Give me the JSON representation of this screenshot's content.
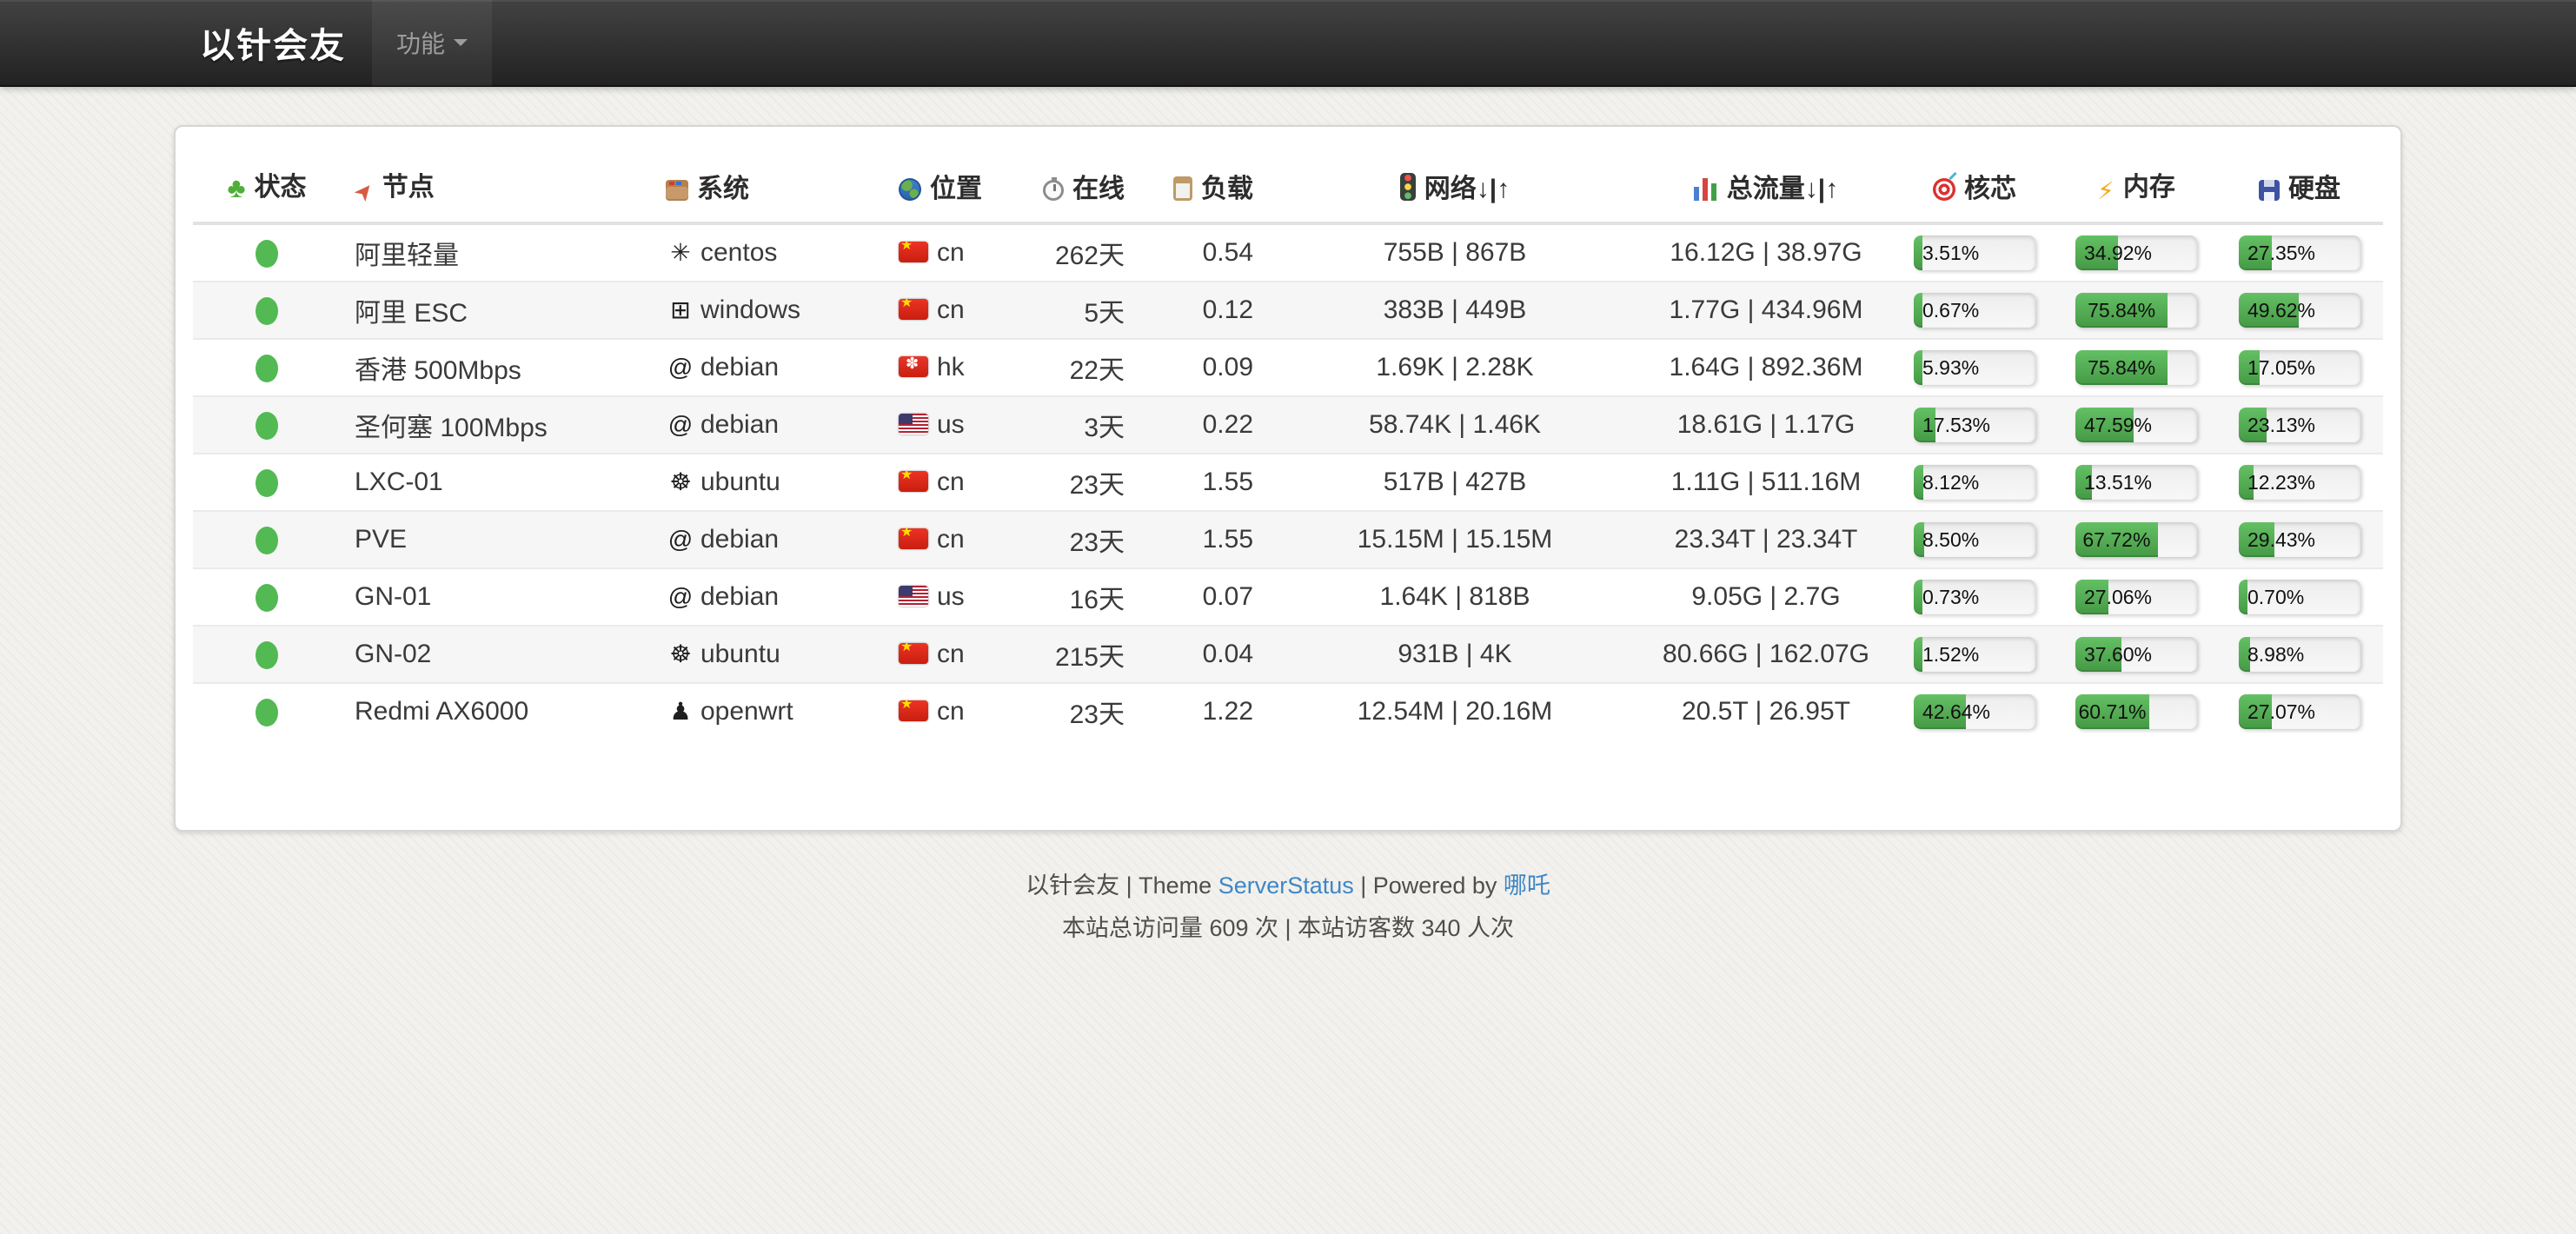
{
  "navbar": {
    "brand": "以针会友",
    "menu_label": "功能"
  },
  "colors": {
    "accent_green": "#53b953",
    "bar_green_top": "#64c064",
    "bar_green_bottom": "#459a45",
    "link_blue": "#3f86c6",
    "navbar_bg": "#222222",
    "stripe_gray": "#f6f6f6"
  },
  "table": {
    "headers": [
      {
        "id": "status",
        "icon": "clover",
        "label": "状态"
      },
      {
        "id": "node",
        "icon": "rocket",
        "label": "节点"
      },
      {
        "id": "system",
        "icon": "box",
        "label": "系统"
      },
      {
        "id": "location",
        "icon": "globe",
        "label": "位置"
      },
      {
        "id": "uptime",
        "icon": "stopwatch",
        "label": "在线"
      },
      {
        "id": "load",
        "icon": "clipboard",
        "label": "负载"
      },
      {
        "id": "network",
        "icon": "traffic-light",
        "label": "网络↓|↑"
      },
      {
        "id": "traffic",
        "icon": "bar-chart",
        "label": "总流量↓|↑"
      },
      {
        "id": "cpu",
        "icon": "target",
        "label": "核芯"
      },
      {
        "id": "memory",
        "icon": "lightning",
        "label": "内存"
      },
      {
        "id": "disk",
        "icon": "floppy",
        "label": "硬盘"
      }
    ],
    "os_icons": {
      "centos": "✳",
      "windows": "⊞",
      "debian": "@",
      "ubuntu": "☸",
      "openwrt": "♟"
    },
    "rows": [
      {
        "status": "online",
        "name": "阿里轻量",
        "os": "centos",
        "location": "cn",
        "uptime": "262天",
        "load": "0.54",
        "network": "755B | 867B",
        "traffic": "16.12G | 38.97G",
        "cpu": {
          "value": 3.51,
          "label": "3.51%"
        },
        "memory": {
          "value": 34.92,
          "label": "34.92%"
        },
        "disk": {
          "value": 27.35,
          "label": "27.35%"
        }
      },
      {
        "status": "online",
        "name": "阿里 ESC",
        "os": "windows",
        "location": "cn",
        "uptime": "5天",
        "load": "0.12",
        "network": "383B | 449B",
        "traffic": "1.77G | 434.96M",
        "cpu": {
          "value": 0.67,
          "label": "0.67%"
        },
        "memory": {
          "value": 75.84,
          "label": "75.84%"
        },
        "disk": {
          "value": 49.62,
          "label": "49.62%"
        }
      },
      {
        "status": "online",
        "name": "香港 500Mbps",
        "os": "debian",
        "location": "hk",
        "uptime": "22天",
        "load": "0.09",
        "network": "1.69K | 2.28K",
        "traffic": "1.64G | 892.36M",
        "cpu": {
          "value": 5.93,
          "label": "5.93%"
        },
        "memory": {
          "value": 75.84,
          "label": "75.84%"
        },
        "disk": {
          "value": 17.05,
          "label": "17.05%"
        }
      },
      {
        "status": "online",
        "name": "圣何塞 100Mbps",
        "os": "debian",
        "location": "us",
        "uptime": "3天",
        "load": "0.22",
        "network": "58.74K | 1.46K",
        "traffic": "18.61G | 1.17G",
        "cpu": {
          "value": 17.53,
          "label": "17.53%"
        },
        "memory": {
          "value": 47.59,
          "label": "47.59%"
        },
        "disk": {
          "value": 23.13,
          "label": "23.13%"
        }
      },
      {
        "status": "online",
        "name": "LXC-01",
        "os": "ubuntu",
        "location": "cn",
        "uptime": "23天",
        "load": "1.55",
        "network": "517B | 427B",
        "traffic": "1.11G | 511.16M",
        "cpu": {
          "value": 8.12,
          "label": "8.12%"
        },
        "memory": {
          "value": 13.51,
          "label": "13.51%"
        },
        "disk": {
          "value": 12.23,
          "label": "12.23%"
        }
      },
      {
        "status": "online",
        "name": "PVE",
        "os": "debian",
        "location": "cn",
        "uptime": "23天",
        "load": "1.55",
        "network": "15.15M | 15.15M",
        "traffic": "23.34T | 23.34T",
        "cpu": {
          "value": 8.5,
          "label": "8.50%"
        },
        "memory": {
          "value": 67.72,
          "label": "67.72%"
        },
        "disk": {
          "value": 29.43,
          "label": "29.43%"
        }
      },
      {
        "status": "online",
        "name": "GN-01",
        "os": "debian",
        "location": "us",
        "uptime": "16天",
        "load": "0.07",
        "network": "1.64K | 818B",
        "traffic": "9.05G | 2.7G",
        "cpu": {
          "value": 0.73,
          "label": "0.73%"
        },
        "memory": {
          "value": 27.06,
          "label": "27.06%"
        },
        "disk": {
          "value": 0.7,
          "label": "0.70%"
        }
      },
      {
        "status": "online",
        "name": "GN-02",
        "os": "ubuntu",
        "location": "cn",
        "uptime": "215天",
        "load": "0.04",
        "network": "931B | 4K",
        "traffic": "80.66G | 162.07G",
        "cpu": {
          "value": 1.52,
          "label": "1.52%"
        },
        "memory": {
          "value": 37.6,
          "label": "37.60%"
        },
        "disk": {
          "value": 8.98,
          "label": "8.98%"
        }
      },
      {
        "status": "online",
        "name": "Redmi AX6000",
        "os": "openwrt",
        "location": "cn",
        "uptime": "23天",
        "load": "1.22",
        "network": "12.54M | 20.16M",
        "traffic": "20.5T | 26.95T",
        "cpu": {
          "value": 42.64,
          "label": "42.64%"
        },
        "memory": {
          "value": 60.71,
          "label": "60.71%"
        },
        "disk": {
          "value": 27.07,
          "label": "27.07%"
        }
      }
    ]
  },
  "footer": {
    "site_name": "以针会友",
    "theme_prefix": " | Theme ",
    "theme_link": "ServerStatus",
    "powered_prefix": " | Powered by ",
    "powered_link": "哪吒",
    "stats": "本站总访问量 609 次 | 本站访客数 340 人次"
  }
}
